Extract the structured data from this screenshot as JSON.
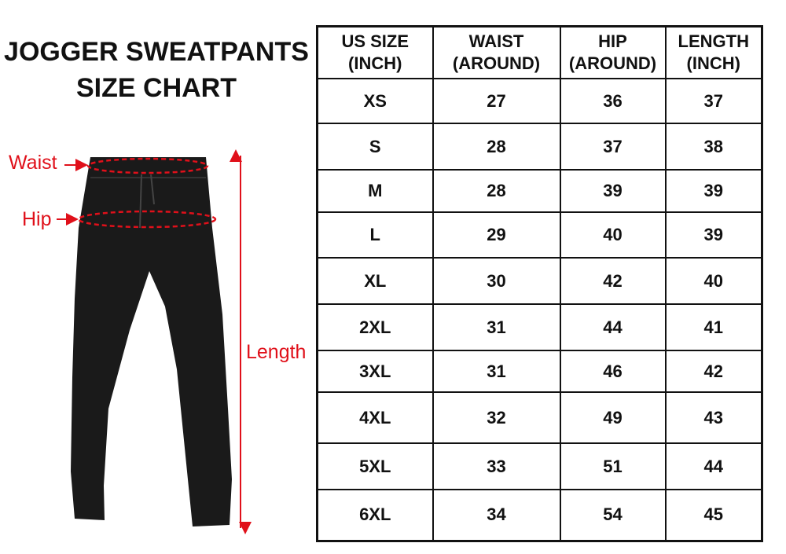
{
  "title": {
    "line1": "JOGGER SWEATPANTS",
    "line2": "SIZE CHART"
  },
  "labels": {
    "waist": "Waist",
    "hip": "Hip",
    "length": "Length"
  },
  "colors": {
    "accent": "#e0101a",
    "garment": "#1a1a1a"
  },
  "table": {
    "headers": [
      [
        "US SIZE",
        "(INCH)"
      ],
      [
        "WAIST",
        "(AROUND)"
      ],
      [
        "HIP",
        "(AROUND)"
      ],
      [
        "LENGTH",
        "(INCH)"
      ]
    ],
    "rows": [
      [
        "XS",
        "27",
        "36",
        "37"
      ],
      [
        "S",
        "28",
        "37",
        "38"
      ],
      [
        "M",
        "28",
        "39",
        "39"
      ],
      [
        "L",
        "29",
        "40",
        "39"
      ],
      [
        "XL",
        "30",
        "42",
        "40"
      ],
      [
        "2XL",
        "31",
        "44",
        "41"
      ],
      [
        "3XL",
        "31",
        "46",
        "42"
      ],
      [
        "4XL",
        "32",
        "49",
        "43"
      ],
      [
        "5XL",
        "33",
        "51",
        "44"
      ],
      [
        "6XL",
        "34",
        "54",
        "45"
      ]
    ]
  }
}
